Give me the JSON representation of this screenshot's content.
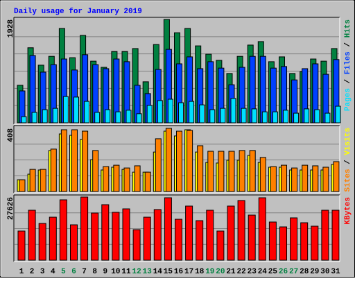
{
  "title": "Daily usage for January 2019",
  "legend_separator": " / ",
  "chart_data": [
    {
      "type": "bar",
      "ylim": [
        0,
        1928
      ],
      "yticks": [
        1928
      ],
      "grid_divisions": 6,
      "series": [
        {
          "name": "Hits",
          "color": "#008040",
          "values": [
            700,
            1400,
            1075,
            1240,
            1760,
            1215,
            1630,
            1150,
            1035,
            1330,
            1330,
            1385,
            765,
            1460,
            1928,
            1680,
            1760,
            1435,
            1280,
            1165,
            920,
            1240,
            1450,
            1515,
            1140,
            1230,
            920,
            955,
            1190,
            1150,
            1385
          ]
        },
        {
          "name": "Files",
          "color": "#0040ff",
          "values": [
            595,
            1255,
            945,
            1085,
            1190,
            985,
            1270,
            1085,
            1010,
            1190,
            1140,
            700,
            545,
            995,
            1370,
            1100,
            1230,
            1010,
            1140,
            1020,
            710,
            1035,
            1240,
            1240,
            1020,
            1050,
            800,
            1010,
            1100,
            905,
            1180
          ]
        },
        {
          "name": "Pages",
          "color": "#00e0ff",
          "values": [
            115,
            195,
            245,
            270,
            490,
            480,
            400,
            195,
            245,
            205,
            235,
            170,
            325,
            415,
            440,
            375,
            400,
            335,
            245,
            270,
            455,
            270,
            260,
            205,
            205,
            235,
            180,
            260,
            245,
            180,
            310
          ]
        }
      ]
    },
    {
      "type": "bar",
      "ylim": [
        0,
        408
      ],
      "yticks": [
        408
      ],
      "grid_divisions": 4,
      "series": [
        {
          "name": "Visits",
          "color": "#ffff00",
          "values": [
            76,
            112,
            139,
            265,
            372,
            363,
            336,
            206,
            139,
            157,
            143,
            125,
            125,
            255,
            390,
            359,
            399,
            255,
            188,
            184,
            202,
            202,
            233,
            188,
            157,
            157,
            139,
            139,
            139,
            139,
            175
          ]
        },
        {
          "name": "Sites",
          "color": "#ff8000",
          "values": [
            76,
            143,
            143,
            274,
            399,
            399,
            390,
            265,
            161,
            170,
            152,
            166,
            125,
            341,
            408,
            390,
            395,
            296,
            260,
            260,
            260,
            265,
            265,
            220,
            161,
            170,
            152,
            170,
            166,
            157,
            193
          ]
        }
      ]
    },
    {
      "type": "bar",
      "ylim": [
        0,
        27626
      ],
      "yticks": [
        27626
      ],
      "grid_divisions": 4,
      "categories": [
        "1",
        "2",
        "3",
        "4",
        "5",
        "6",
        "7",
        "8",
        "9",
        "10",
        "11",
        "12",
        "13",
        "14",
        "15",
        "16",
        "17",
        "18",
        "19",
        "20",
        "21",
        "22",
        "23",
        "24",
        "25",
        "26",
        "27",
        "28",
        "29",
        "30",
        "31"
      ],
      "category_colors": [
        "#000000",
        "#000000",
        "#000000",
        "#000000",
        "#008040",
        "#008040",
        "#000000",
        "#000000",
        "#000000",
        "#000000",
        "#000000",
        "#008040",
        "#008040",
        "#000000",
        "#000000",
        "#000000",
        "#000000",
        "#000000",
        "#008040",
        "#008040",
        "#000000",
        "#000000",
        "#000000",
        "#000000",
        "#000000",
        "#008040",
        "#008040",
        "#000000",
        "#000000",
        "#000000",
        "#000000"
      ],
      "series": [
        {
          "name": "KBytes",
          "color": "#ff0000",
          "values": [
            12750,
            21860,
            16090,
            18820,
            26410,
            15480,
            27626,
            20640,
            24290,
            20950,
            22460,
            13360,
            18820,
            22160,
            27320,
            17910,
            23680,
            17300,
            21860,
            12750,
            23680,
            26110,
            19730,
            27320,
            16700,
            14570,
            18520,
            16390,
            14880,
            21860,
            21860
          ]
        }
      ]
    }
  ]
}
